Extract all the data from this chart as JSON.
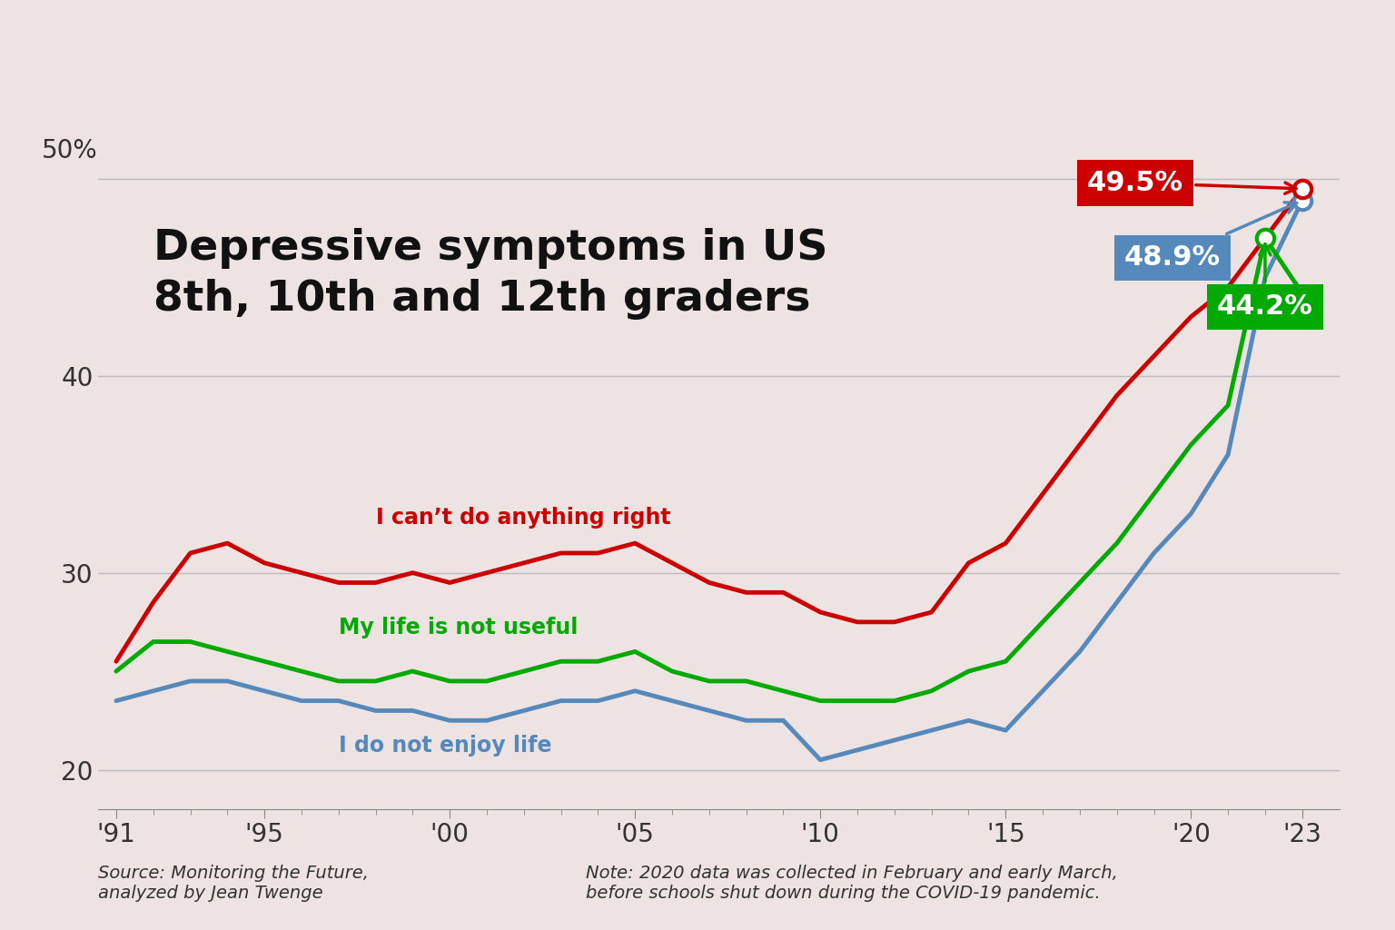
{
  "title": "Depressive symptoms in US\n8th, 10th and 12th graders",
  "background_color": "#ede3e3",
  "source_text": "Source: Monitoring the Future,\nanalyzed by Jean Twenge",
  "note_text": "Note: 2020 data was collected in February and early March,\nbefore schools shut down during the COVID-19 pandemic.",
  "red_label": "I can’t do anything right",
  "green_label": "My life is not useful",
  "blue_label": "I do not enjoy life",
  "red_color": "#cc0000",
  "green_color": "#00aa00",
  "blue_color": "#5588bb",
  "ylim": [
    18,
    52
  ],
  "yticks": [
    20,
    30,
    40,
    50
  ],
  "red_final_label": "49.5%",
  "blue_final_label": "48.9%",
  "green_final_label": "44.2%",
  "red_data": {
    "years": [
      1991,
      1992,
      1993,
      1994,
      1995,
      1996,
      1997,
      1998,
      1999,
      2000,
      2001,
      2002,
      2003,
      2004,
      2005,
      2006,
      2007,
      2008,
      2009,
      2010,
      2011,
      2012,
      2013,
      2014,
      2015,
      2016,
      2017,
      2018,
      2019,
      2020,
      2021,
      2022,
      2023
    ],
    "values": [
      25.5,
      28.5,
      31.0,
      31.5,
      30.5,
      30.0,
      29.5,
      29.5,
      30.0,
      29.5,
      30.0,
      30.5,
      31.0,
      31.0,
      31.5,
      30.5,
      29.5,
      29.0,
      29.0,
      28.0,
      27.5,
      27.5,
      28.0,
      30.5,
      31.5,
      34.0,
      36.5,
      39.0,
      41.0,
      43.0,
      44.5,
      47.0,
      49.5
    ]
  },
  "green_data": {
    "years": [
      1991,
      1992,
      1993,
      1994,
      1995,
      1996,
      1997,
      1998,
      1999,
      2000,
      2001,
      2002,
      2003,
      2004,
      2005,
      2006,
      2007,
      2008,
      2009,
      2010,
      2011,
      2012,
      2013,
      2014,
      2015,
      2016,
      2017,
      2018,
      2019,
      2020,
      2021,
      2022,
      2023
    ],
    "values": [
      25.0,
      26.5,
      26.5,
      26.0,
      25.5,
      25.0,
      24.5,
      24.5,
      25.0,
      24.5,
      24.5,
      25.0,
      25.5,
      25.5,
      26.0,
      25.0,
      24.5,
      24.5,
      24.0,
      23.5,
      23.5,
      23.5,
      24.0,
      25.0,
      25.5,
      27.5,
      29.5,
      31.5,
      34.0,
      36.5,
      38.5,
      47.0,
      44.2
    ]
  },
  "blue_data": {
    "years": [
      1991,
      1992,
      1993,
      1994,
      1995,
      1996,
      1997,
      1998,
      1999,
      2000,
      2001,
      2002,
      2003,
      2004,
      2005,
      2006,
      2007,
      2008,
      2009,
      2010,
      2011,
      2012,
      2013,
      2014,
      2015,
      2016,
      2017,
      2018,
      2019,
      2020,
      2021,
      2022,
      2023
    ],
    "values": [
      23.5,
      24.0,
      24.5,
      24.5,
      24.0,
      23.5,
      23.5,
      23.0,
      23.0,
      22.5,
      22.5,
      23.0,
      23.5,
      23.5,
      24.0,
      23.5,
      23.0,
      22.5,
      22.5,
      20.5,
      21.0,
      21.5,
      22.0,
      22.5,
      22.0,
      24.0,
      26.0,
      28.5,
      31.0,
      33.0,
      36.0,
      45.0,
      48.9
    ]
  }
}
